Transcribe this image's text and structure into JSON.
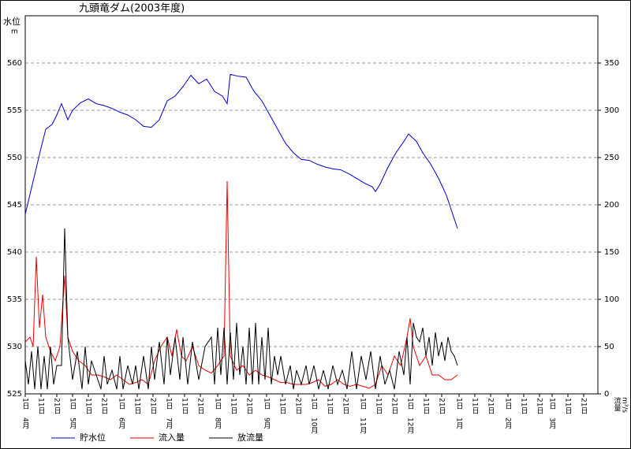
{
  "chart_data": {
    "type": "line",
    "title": "九頭竜ダム(2003年度)",
    "ylabel": "水位",
    "yunit": "m",
    "y2label": "流量",
    "y2unit": "m³/s",
    "xlim": [
      0,
      363
    ],
    "ylim": [
      525,
      565
    ],
    "yticks": [
      525,
      530,
      535,
      540,
      545,
      550,
      555,
      560
    ],
    "y2lim": [
      0,
      400
    ],
    "y2ticks": [
      0,
      50,
      100,
      150,
      200,
      250,
      300,
      350
    ],
    "grid": true,
    "xticks": [
      {
        "value": 0,
        "label": "1日"
      },
      {
        "value": 10,
        "label": "11日"
      },
      {
        "value": 20,
        "label": "21日"
      },
      {
        "value": 30,
        "label": "1日"
      },
      {
        "value": 40,
        "label": "11日"
      },
      {
        "value": 50,
        "label": "21日"
      },
      {
        "value": 61,
        "label": "1日"
      },
      {
        "value": 71,
        "label": "11日"
      },
      {
        "value": 81,
        "label": "21日"
      },
      {
        "value": 91,
        "label": "1日"
      },
      {
        "value": 101,
        "label": "11日"
      },
      {
        "value": 111,
        "label": "21日"
      },
      {
        "value": 122,
        "label": "1日"
      },
      {
        "value": 132,
        "label": "11日"
      },
      {
        "value": 142,
        "label": "21日"
      },
      {
        "value": 153,
        "label": "1日"
      },
      {
        "value": 163,
        "label": "11日"
      },
      {
        "value": 173,
        "label": "21日"
      },
      {
        "value": 183,
        "label": "1日"
      },
      {
        "value": 193,
        "label": "11日"
      },
      {
        "value": 203,
        "label": "21日"
      },
      {
        "value": 214,
        "label": "1日"
      },
      {
        "value": 224,
        "label": "11日"
      },
      {
        "value": 234,
        "label": "21日"
      },
      {
        "value": 244,
        "label": "1日"
      },
      {
        "value": 254,
        "label": "11日"
      },
      {
        "value": 264,
        "label": "21日"
      },
      {
        "value": 275,
        "label": "1日"
      },
      {
        "value": 285,
        "label": "11日"
      },
      {
        "value": 295,
        "label": "21日"
      },
      {
        "value": 306,
        "label": "1日"
      },
      {
        "value": 316,
        "label": "11日"
      },
      {
        "value": 326,
        "label": "21日"
      },
      {
        "value": 334,
        "label": "1日"
      },
      {
        "value": 344,
        "label": "11日"
      },
      {
        "value": 354,
        "label": "21日"
      }
    ],
    "month_labels": [
      {
        "value": 0,
        "label": "4月"
      },
      {
        "value": 30,
        "label": "5月"
      },
      {
        "value": 61,
        "label": "6月"
      },
      {
        "value": 91,
        "label": "7月"
      },
      {
        "value": 122,
        "label": "8月"
      },
      {
        "value": 153,
        "label": "9月"
      },
      {
        "value": 183,
        "label": "10月"
      },
      {
        "value": 214,
        "label": "11月"
      },
      {
        "value": 244,
        "label": "12月"
      },
      {
        "value": 275,
        "label": "1月"
      },
      {
        "value": 306,
        "label": "2月"
      },
      {
        "value": 334,
        "label": "3月"
      }
    ],
    "series": [
      {
        "name": "貯水位",
        "color": "#0000cc",
        "x": [
          0,
          5,
          10,
          13,
          17,
          20,
          23,
          27,
          30,
          35,
          40,
          45,
          50,
          55,
          60,
          65,
          70,
          75,
          80,
          85,
          90,
          95,
          100,
          105,
          110,
          115,
          120,
          125,
          128,
          130,
          135,
          140,
          145,
          150,
          155,
          160,
          165,
          170,
          175,
          180,
          185,
          190,
          195,
          200,
          205,
          210,
          215,
          220,
          222,
          225,
          230,
          235,
          240,
          243,
          248,
          252,
          257,
          262,
          267,
          272,
          274
        ],
        "values": [
          544,
          547.5,
          551,
          553,
          553.5,
          554.5,
          555.7,
          554,
          555,
          555.8,
          556.2,
          555.7,
          555.5,
          555.2,
          554.8,
          554.5,
          554,
          553.3,
          553.2,
          554,
          556,
          556.5,
          557.5,
          558.7,
          557.8,
          558.3,
          557,
          556.5,
          555.7,
          558.8,
          558.6,
          558.5,
          557,
          556,
          554.5,
          553,
          551.5,
          550.5,
          549.8,
          549.7,
          549.3,
          549,
          548.8,
          548.7,
          548.3,
          547.8,
          547.3,
          546.9,
          546.4,
          547.2,
          549,
          550.5,
          551.7,
          552.5,
          551.7,
          550.5,
          549.3,
          547.8,
          546,
          543.5,
          542.5
        ]
      },
      {
        "name": "流入量",
        "color": "#ee0000",
        "axis": "y2",
        "x": [
          0,
          3,
          5,
          7,
          9,
          11,
          13,
          16,
          19,
          22,
          25,
          27,
          30,
          34,
          38,
          42,
          46,
          50,
          54,
          58,
          62,
          66,
          70,
          74,
          78,
          82,
          86,
          90,
          93,
          96,
          99,
          102,
          106,
          110,
          114,
          118,
          122,
          126,
          128,
          130,
          134,
          138,
          142,
          146,
          150,
          154,
          158,
          162,
          166,
          170,
          174,
          178,
          182,
          186,
          190,
          194,
          198,
          202,
          206,
          210,
          214,
          218,
          222,
          226,
          230,
          234,
          238,
          242,
          244,
          246,
          250,
          254,
          258,
          262,
          266,
          270,
          274
        ],
        "values": [
          55,
          60,
          50,
          145,
          70,
          105,
          60,
          45,
          35,
          50,
          125,
          60,
          45,
          35,
          30,
          20,
          20,
          18,
          15,
          20,
          15,
          10,
          12,
          15,
          10,
          35,
          50,
          60,
          40,
          68,
          40,
          35,
          50,
          30,
          25,
          22,
          30,
          40,
          225,
          40,
          25,
          30,
          20,
          25,
          20,
          18,
          15,
          12,
          12,
          10,
          10,
          10,
          12,
          15,
          8,
          10,
          15,
          10,
          8,
          10,
          8,
          6,
          10,
          30,
          20,
          40,
          30,
          60,
          80,
          50,
          30,
          40,
          20,
          20,
          15,
          15,
          20
        ]
      },
      {
        "name": "放流量",
        "color": "#000000",
        "axis": "y2",
        "x": [
          0,
          2,
          4,
          6,
          8,
          10,
          12,
          14,
          16,
          18,
          20,
          23,
          25,
          27,
          30,
          33,
          36,
          38,
          40,
          42,
          45,
          48,
          50,
          52,
          55,
          58,
          60,
          62,
          65,
          68,
          70,
          72,
          75,
          78,
          80,
          82,
          85,
          88,
          90,
          92,
          95,
          98,
          100,
          103,
          106,
          110,
          114,
          118,
          120,
          122,
          124,
          126,
          128,
          130,
          132,
          134,
          136,
          138,
          140,
          142,
          144,
          146,
          148,
          150,
          152,
          154,
          156,
          158,
          160,
          162,
          165,
          168,
          170,
          172,
          175,
          178,
          180,
          183,
          186,
          189,
          192,
          195,
          198,
          201,
          204,
          207,
          210,
          213,
          216,
          219,
          222,
          225,
          228,
          231,
          234,
          237,
          240,
          242,
          244,
          246,
          248,
          250,
          252,
          254,
          256,
          258,
          260,
          262,
          264,
          266,
          268,
          270,
          272,
          274
        ],
        "values": [
          35,
          10,
          45,
          5,
          50,
          5,
          40,
          5,
          50,
          10,
          30,
          30,
          175,
          60,
          15,
          45,
          5,
          50,
          10,
          35,
          20,
          5,
          40,
          10,
          25,
          5,
          40,
          5,
          30,
          10,
          30,
          5,
          40,
          5,
          50,
          15,
          55,
          10,
          60,
          20,
          60,
          15,
          60,
          10,
          55,
          15,
          50,
          60,
          10,
          70,
          20,
          70,
          10,
          65,
          15,
          75,
          20,
          50,
          10,
          70,
          10,
          75,
          10,
          60,
          15,
          70,
          10,
          40,
          20,
          40,
          10,
          30,
          5,
          25,
          10,
          30,
          10,
          30,
          5,
          25,
          5,
          30,
          10,
          25,
          5,
          45,
          5,
          40,
          15,
          45,
          5,
          40,
          10,
          25,
          5,
          45,
          20,
          60,
          10,
          75,
          60,
          55,
          70,
          40,
          60,
          30,
          65,
          40,
          55,
          35,
          60,
          45,
          40,
          30
        ]
      }
    ]
  }
}
